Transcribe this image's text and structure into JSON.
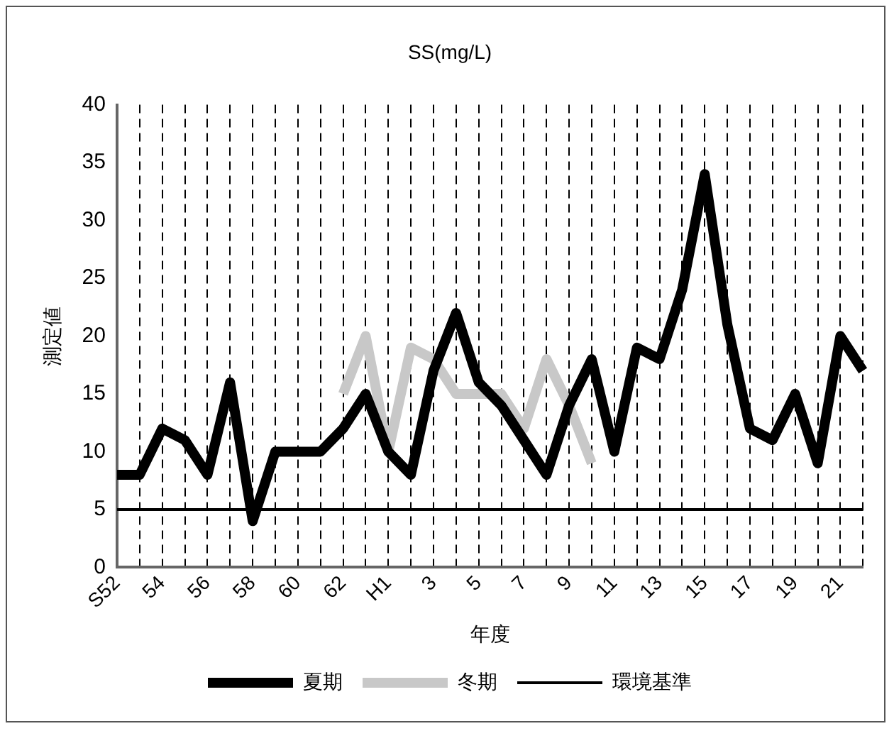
{
  "chart_data": {
    "type": "line",
    "title": "SS(mg/L)",
    "xlabel": "年度",
    "ylabel": "測定値",
    "categories": [
      "S52",
      null,
      "54",
      null,
      "56",
      null,
      "58",
      null,
      "60",
      null,
      "62",
      null,
      "H1",
      null,
      "3",
      null,
      "5",
      null,
      "7",
      null,
      "9",
      null,
      "11",
      null,
      "13",
      null,
      "15",
      null,
      "17",
      null,
      "19",
      null,
      "21",
      null
    ],
    "series": [
      {
        "name": "夏期",
        "color": "#000000",
        "values": [
          8,
          8,
          12,
          11,
          8,
          16,
          4,
          10,
          10,
          10,
          12,
          15,
          10,
          8,
          17,
          22,
          16,
          14,
          11,
          8,
          14,
          18,
          10,
          19,
          18,
          24,
          34,
          21,
          12,
          11,
          15,
          9,
          20,
          17
        ]
      },
      {
        "name": "冬期",
        "color": "#c8c8c8",
        "values": [
          null,
          null,
          null,
          null,
          null,
          null,
          null,
          null,
          null,
          null,
          15,
          20,
          10,
          19,
          18,
          15,
          15,
          15,
          12,
          18,
          14,
          9,
          null,
          null,
          null,
          null,
          null,
          null,
          null,
          null,
          null,
          null,
          null,
          null
        ]
      },
      {
        "name": "環境基準",
        "color": "#000000",
        "values": [
          5,
          5,
          5,
          5,
          5,
          5,
          5,
          5,
          5,
          5,
          5,
          5,
          5,
          5,
          5,
          5,
          5,
          5,
          5,
          5,
          5,
          5,
          5,
          5,
          5,
          5,
          5,
          5,
          5,
          5,
          5,
          5,
          5,
          5
        ]
      }
    ],
    "ylim": [
      0,
      40
    ],
    "yticks": [
      0,
      5,
      10,
      15,
      20,
      25,
      30,
      35,
      40
    ],
    "grid": "x",
    "legend": "bottom",
    "marker": "none",
    "line_style": "solid"
  }
}
